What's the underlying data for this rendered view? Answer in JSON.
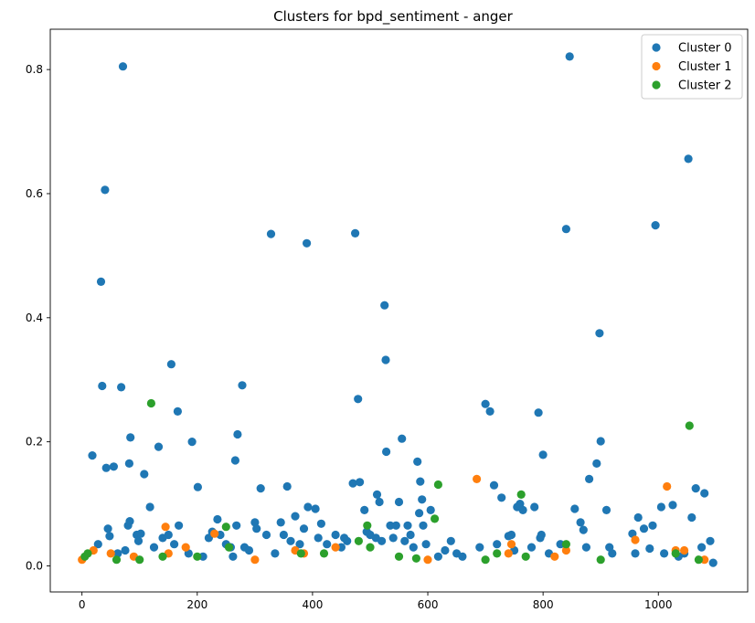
{
  "chart_data": {
    "type": "scatter",
    "title": "Clusters for bpd_sentiment - anger",
    "xlabel": "",
    "ylabel": "",
    "xlim": [
      -55,
      1155
    ],
    "ylim": [
      -0.042,
      0.865
    ],
    "xticks": [
      0,
      200,
      400,
      600,
      800,
      1000
    ],
    "yticks": [
      0.0,
      0.2,
      0.4,
      0.6,
      0.8
    ],
    "ytick_labels": [
      "0.0",
      "0.2",
      "0.4",
      "0.6",
      "0.8"
    ],
    "grid": false,
    "legend_position": "top-right",
    "series": [
      {
        "name": "Cluster 0",
        "color": "#1f77b4",
        "points": [
          [
            18,
            0.178
          ],
          [
            28,
            0.035
          ],
          [
            33,
            0.458
          ],
          [
            35,
            0.29
          ],
          [
            40,
            0.606
          ],
          [
            42,
            0.158
          ],
          [
            45,
            0.06
          ],
          [
            48,
            0.048
          ],
          [
            55,
            0.16
          ],
          [
            62,
            0.02
          ],
          [
            68,
            0.288
          ],
          [
            71,
            0.805
          ],
          [
            75,
            0.025
          ],
          [
            80,
            0.065
          ],
          [
            82,
            0.165
          ],
          [
            83,
            0.072
          ],
          [
            84,
            0.207
          ],
          [
            95,
            0.05
          ],
          [
            98,
            0.04
          ],
          [
            102,
            0.052
          ],
          [
            108,
            0.148
          ],
          [
            118,
            0.095
          ],
          [
            125,
            0.03
          ],
          [
            133,
            0.192
          ],
          [
            140,
            0.045
          ],
          [
            150,
            0.05
          ],
          [
            155,
            0.325
          ],
          [
            160,
            0.035
          ],
          [
            166,
            0.249
          ],
          [
            168,
            0.065
          ],
          [
            185,
            0.02
          ],
          [
            191,
            0.2
          ],
          [
            201,
            0.127
          ],
          [
            210,
            0.015
          ],
          [
            220,
            0.045
          ],
          [
            226,
            0.055
          ],
          [
            235,
            0.075
          ],
          [
            240,
            0.05
          ],
          [
            250,
            0.035
          ],
          [
            258,
            0.03
          ],
          [
            262,
            0.015
          ],
          [
            266,
            0.17
          ],
          [
            268,
            0.065
          ],
          [
            270,
            0.212
          ],
          [
            278,
            0.291
          ],
          [
            282,
            0.03
          ],
          [
            290,
            0.025
          ],
          [
            300,
            0.07
          ],
          [
            303,
            0.06
          ],
          [
            310,
            0.125
          ],
          [
            320,
            0.05
          ],
          [
            328,
            0.535
          ],
          [
            335,
            0.02
          ],
          [
            345,
            0.07
          ],
          [
            350,
            0.05
          ],
          [
            356,
            0.128
          ],
          [
            362,
            0.04
          ],
          [
            370,
            0.08
          ],
          [
            378,
            0.035
          ],
          [
            385,
            0.06
          ],
          [
            390,
            0.52
          ],
          [
            392,
            0.095
          ],
          [
            405,
            0.092
          ],
          [
            410,
            0.045
          ],
          [
            415,
            0.068
          ],
          [
            425,
            0.035
          ],
          [
            440,
            0.05
          ],
          [
            450,
            0.03
          ],
          [
            455,
            0.045
          ],
          [
            460,
            0.04
          ],
          [
            470,
            0.133
          ],
          [
            474,
            0.536
          ],
          [
            479,
            0.269
          ],
          [
            482,
            0.135
          ],
          [
            490,
            0.09
          ],
          [
            494,
            0.055
          ],
          [
            500,
            0.05
          ],
          [
            510,
            0.045
          ],
          [
            512,
            0.115
          ],
          [
            516,
            0.103
          ],
          [
            520,
            0.04
          ],
          [
            525,
            0.42
          ],
          [
            527,
            0.332
          ],
          [
            528,
            0.184
          ],
          [
            535,
            0.065
          ],
          [
            540,
            0.045
          ],
          [
            545,
            0.065
          ],
          [
            550,
            0.103
          ],
          [
            555,
            0.205
          ],
          [
            560,
            0.04
          ],
          [
            565,
            0.065
          ],
          [
            570,
            0.05
          ],
          [
            575,
            0.03
          ],
          [
            582,
            0.168
          ],
          [
            585,
            0.085
          ],
          [
            587,
            0.136
          ],
          [
            590,
            0.107
          ],
          [
            592,
            0.065
          ],
          [
            597,
            0.035
          ],
          [
            605,
            0.09
          ],
          [
            618,
            0.015
          ],
          [
            630,
            0.025
          ],
          [
            640,
            0.04
          ],
          [
            650,
            0.02
          ],
          [
            660,
            0.015
          ],
          [
            690,
            0.03
          ],
          [
            700,
            0.261
          ],
          [
            708,
            0.249
          ],
          [
            715,
            0.13
          ],
          [
            720,
            0.035
          ],
          [
            728,
            0.11
          ],
          [
            740,
            0.048
          ],
          [
            745,
            0.05
          ],
          [
            750,
            0.025
          ],
          [
            755,
            0.095
          ],
          [
            760,
            0.1
          ],
          [
            765,
            0.09
          ],
          [
            780,
            0.03
          ],
          [
            785,
            0.095
          ],
          [
            792,
            0.247
          ],
          [
            795,
            0.045
          ],
          [
            797,
            0.05
          ],
          [
            800,
            0.179
          ],
          [
            810,
            0.02
          ],
          [
            830,
            0.035
          ],
          [
            840,
            0.543
          ],
          [
            846,
            0.821
          ],
          [
            855,
            0.092
          ],
          [
            865,
            0.07
          ],
          [
            870,
            0.058
          ],
          [
            875,
            0.03
          ],
          [
            880,
            0.14
          ],
          [
            893,
            0.165
          ],
          [
            898,
            0.375
          ],
          [
            900,
            0.201
          ],
          [
            910,
            0.09
          ],
          [
            915,
            0.03
          ],
          [
            920,
            0.02
          ],
          [
            955,
            0.052
          ],
          [
            960,
            0.02
          ],
          [
            965,
            0.078
          ],
          [
            975,
            0.06
          ],
          [
            985,
            0.028
          ],
          [
            990,
            0.065
          ],
          [
            995,
            0.549
          ],
          [
            1005,
            0.095
          ],
          [
            1010,
            0.02
          ],
          [
            1025,
            0.098
          ],
          [
            1035,
            0.015
          ],
          [
            1045,
            0.02
          ],
          [
            1052,
            0.656
          ],
          [
            1058,
            0.078
          ],
          [
            1065,
            0.125
          ],
          [
            1075,
            0.03
          ],
          [
            1080,
            0.117
          ],
          [
            1090,
            0.04
          ],
          [
            1095,
            0.005
          ]
        ]
      },
      {
        "name": "Cluster 1",
        "color": "#ff7f0e",
        "points": [
          [
            0,
            0.01
          ],
          [
            20,
            0.025
          ],
          [
            50,
            0.02
          ],
          [
            90,
            0.015
          ],
          [
            145,
            0.063
          ],
          [
            150,
            0.02
          ],
          [
            180,
            0.03
          ],
          [
            230,
            0.052
          ],
          [
            300,
            0.01
          ],
          [
            370,
            0.025
          ],
          [
            385,
            0.02
          ],
          [
            440,
            0.03
          ],
          [
            600,
            0.01
          ],
          [
            685,
            0.14
          ],
          [
            740,
            0.02
          ],
          [
            745,
            0.035
          ],
          [
            820,
            0.015
          ],
          [
            840,
            0.025
          ],
          [
            960,
            0.042
          ],
          [
            1015,
            0.128
          ],
          [
            1030,
            0.025
          ],
          [
            1045,
            0.025
          ],
          [
            1080,
            0.01
          ]
        ]
      },
      {
        "name": "Cluster 2",
        "color": "#2ca02c",
        "points": [
          [
            5,
            0.015
          ],
          [
            10,
            0.02
          ],
          [
            60,
            0.01
          ],
          [
            100,
            0.01
          ],
          [
            120,
            0.262
          ],
          [
            140,
            0.015
          ],
          [
            200,
            0.015
          ],
          [
            250,
            0.063
          ],
          [
            255,
            0.03
          ],
          [
            380,
            0.02
          ],
          [
            420,
            0.02
          ],
          [
            480,
            0.04
          ],
          [
            495,
            0.065
          ],
          [
            500,
            0.03
          ],
          [
            550,
            0.015
          ],
          [
            580,
            0.012
          ],
          [
            612,
            0.076
          ],
          [
            618,
            0.131
          ],
          [
            700,
            0.01
          ],
          [
            720,
            0.02
          ],
          [
            762,
            0.115
          ],
          [
            770,
            0.015
          ],
          [
            840,
            0.035
          ],
          [
            900,
            0.01
          ],
          [
            1030,
            0.02
          ],
          [
            1054,
            0.226
          ],
          [
            1070,
            0.01
          ]
        ]
      }
    ]
  }
}
